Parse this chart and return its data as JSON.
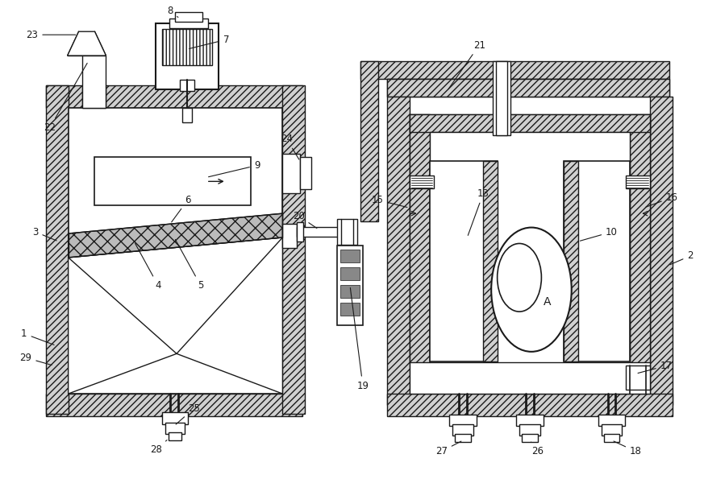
{
  "bg": "#ffffff",
  "lc": "#1a1a1a",
  "hfc": "#d0d0d0",
  "fw": 8.73,
  "fh": 5.95,
  "dpi": 100
}
